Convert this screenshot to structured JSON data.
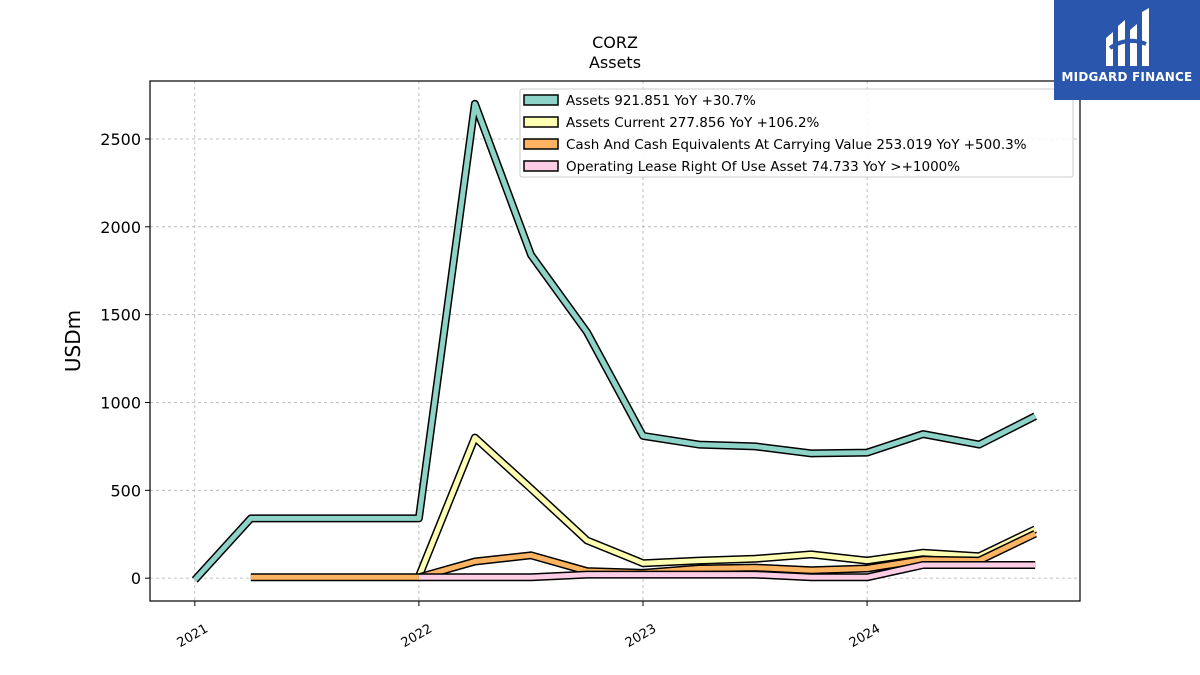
{
  "chart_data": {
    "type": "line",
    "title": "CORZ",
    "subtitle": "Assets",
    "ylabel": "USDm",
    "xlabel": "",
    "ylim": [
      -130,
      2830
    ],
    "xlim": [
      2020.8,
      2024.95
    ],
    "yticks": [
      0,
      500,
      1000,
      1500,
      2000,
      2500
    ],
    "xticks": [
      2021,
      2022,
      2023,
      2024
    ],
    "grid": true,
    "legend_position": "top-right",
    "series": [
      {
        "name": "Assets",
        "legend": "Assets  921.851 YoY +30.7%",
        "color": "#8dd3c7",
        "points": [
          [
            2021.0,
            -10
          ],
          [
            2021.25,
            340
          ],
          [
            2022.0,
            340
          ],
          [
            2022.25,
            2700
          ],
          [
            2022.5,
            1840
          ],
          [
            2022.75,
            1400
          ],
          [
            2023.0,
            810
          ],
          [
            2023.25,
            760
          ],
          [
            2023.5,
            750
          ],
          [
            2023.75,
            710
          ],
          [
            2024.0,
            715
          ],
          [
            2024.25,
            820
          ],
          [
            2024.5,
            760
          ],
          [
            2024.75,
            922
          ]
        ]
      },
      {
        "name": "Assets Current",
        "legend": "Assets Current  277.856 YoY +106.2%",
        "color": "#ffffb3",
        "points": [
          [
            2022.0,
            10
          ],
          [
            2022.25,
            800
          ],
          [
            2022.5,
            510
          ],
          [
            2022.75,
            215
          ],
          [
            2023.0,
            85
          ],
          [
            2023.25,
            100
          ],
          [
            2023.5,
            110
          ],
          [
            2023.75,
            135
          ],
          [
            2024.0,
            100
          ],
          [
            2024.25,
            145
          ],
          [
            2024.5,
            125
          ],
          [
            2024.75,
            278
          ]
        ]
      },
      {
        "name": "Cash And Cash Equivalents At Carrying Value",
        "legend": "Cash And Cash Equivalents At Carrying Value  253.019 YoY +500.3%",
        "color": "#fdb462",
        "points": [
          [
            2021.25,
            5
          ],
          [
            2022.0,
            5
          ],
          [
            2022.25,
            95
          ],
          [
            2022.5,
            130
          ],
          [
            2022.75,
            40
          ],
          [
            2023.0,
            30
          ],
          [
            2023.25,
            55
          ],
          [
            2023.5,
            60
          ],
          [
            2023.75,
            45
          ],
          [
            2024.0,
            55
          ],
          [
            2024.25,
            105
          ],
          [
            2024.5,
            100
          ],
          [
            2024.75,
            253
          ]
        ]
      },
      {
        "name": "Operating Lease Right Of Use Asset",
        "legend": "Operating Lease Right Of Use Asset  74.733 YoY >+1000%",
        "color": "#fccde5",
        "points": [
          [
            2022.0,
            5
          ],
          [
            2022.5,
            5
          ],
          [
            2022.75,
            20
          ],
          [
            2023.5,
            20
          ],
          [
            2023.75,
            5
          ],
          [
            2024.0,
            5
          ],
          [
            2024.25,
            75
          ],
          [
            2024.75,
            75
          ]
        ]
      }
    ]
  },
  "logo": {
    "text": "MIDGARD FINANCE",
    "color": "#2a56ad"
  }
}
